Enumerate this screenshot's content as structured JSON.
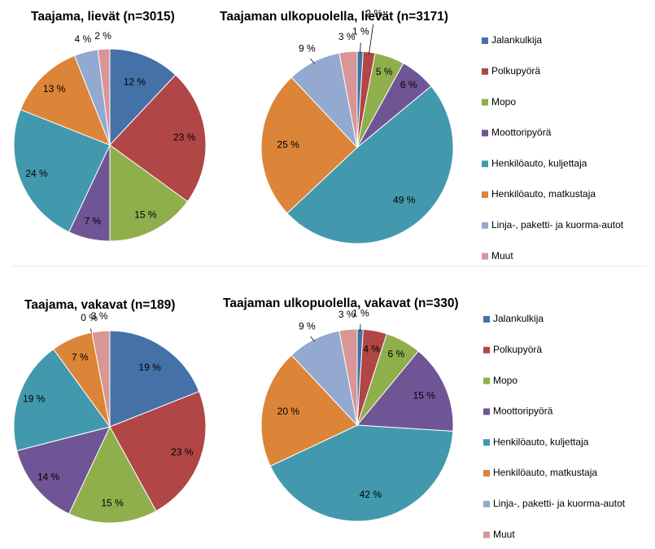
{
  "colors": {
    "Jalankulkija": "#4472a8",
    "Polkupyörä": "#b04645",
    "Mopo": "#8faf4d",
    "Moottoripyörä": "#6f5596",
    "Henkilöauto, kuljettaja": "#4299ae",
    "Henkilöauto, matkustaja": "#dc8437",
    "Linja-, paketti- ja kuorma-autot": "#94a9cf",
    "Muut": "#d89697"
  },
  "legend": {
    "top": [
      "Jalankulkija",
      "Polkupyörä",
      "Mopo",
      "Moottoripyörä",
      "Henkilöauto, kuljettaja",
      "Henkilöauto, matkustaja",
      "Linja-, paketti- ja kuorma-autot",
      "Muut"
    ],
    "bottom": [
      "Jalankulkija",
      "Polkupyörä",
      "Mopo",
      "Moottoripyörä",
      "Henkilöauto, kuljettaja",
      "Henkilöauto, matkustaja",
      "Linja-, paketti- ja kuorma-autot",
      "Muut"
    ]
  },
  "chart_data": [
    {
      "type": "pie",
      "title": "Taajama, lievät (n=3015)",
      "categories": [
        "Jalankulkija",
        "Polkupyörä",
        "Mopo",
        "Moottoripyörä",
        "Henkilöauto, kuljettaja",
        "Henkilöauto, matkustaja",
        "Linja-, paketti- ja kuorma-autot",
        "Muut"
      ],
      "values": [
        12,
        23,
        15,
        7,
        24,
        13,
        4,
        2
      ],
      "labels": [
        "12 %",
        "23 %",
        "15 %",
        "7 %",
        "24 %",
        "13 %",
        "4 %",
        "2 %"
      ]
    },
    {
      "type": "pie",
      "title": "Taajaman ulkopuolella, lievät (n=3171)",
      "categories": [
        "Jalankulkija",
        "Polkupyörä",
        "Mopo",
        "Moottoripyörä",
        "Henkilöauto, kuljettaja",
        "Henkilöauto, matkustaja",
        "Linja-, paketti- ja kuorma-autot",
        "Muut"
      ],
      "values": [
        1,
        2,
        5,
        6,
        49,
        25,
        9,
        3
      ],
      "labels": [
        "1 %",
        "2 %",
        "5 %",
        "6 %",
        "49 %",
        "25 %",
        "9 %",
        "3 %"
      ]
    },
    {
      "type": "pie",
      "title": "Taajama, vakavat (n=189)",
      "categories": [
        "Jalankulkija",
        "Polkupyörä",
        "Mopo",
        "Moottoripyörä",
        "Henkilöauto, kuljettaja",
        "Henkilöauto, matkustaja",
        "Linja-, paketti- ja kuorma-autot",
        "Muut"
      ],
      "values": [
        19,
        23,
        15,
        14,
        19,
        7,
        0,
        3
      ],
      "labels": [
        "19 %",
        "23 %",
        "15 %",
        "14 %",
        "19 %",
        "7 %",
        "0 %",
        "3 %"
      ]
    },
    {
      "type": "pie",
      "title": "Taajaman ulkopuolella, vakavat (n=330)",
      "categories": [
        "Jalankulkija",
        "Polkupyörä",
        "Mopo",
        "Moottoripyörä",
        "Henkilöauto, kuljettaja",
        "Henkilöauto, matkustaja",
        "Linja-, paketti- ja kuorma-autot",
        "Muut"
      ],
      "values": [
        1,
        4,
        6,
        15,
        42,
        20,
        9,
        3
      ],
      "labels": [
        "1 %",
        "4 %",
        "6 %",
        "15 %",
        "42 %",
        "20 %",
        "9 %",
        "3 %"
      ]
    }
  ]
}
